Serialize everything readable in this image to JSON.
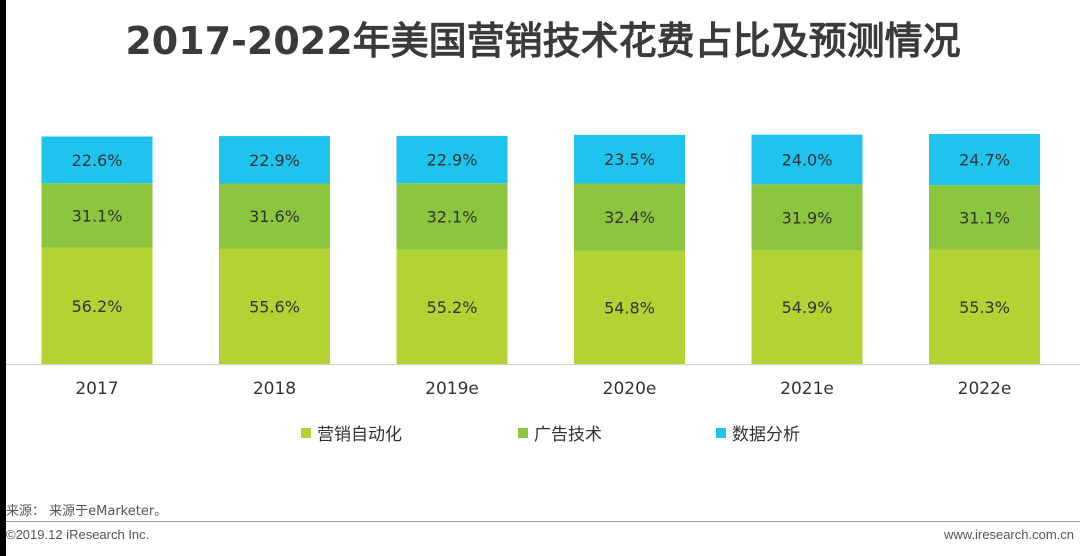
{
  "title": "2017-2022年美国营销技术花费占比及预测情况",
  "chart_data": {
    "type": "bar",
    "stacked": true,
    "normalized": true,
    "categories": [
      "2017",
      "2018",
      "2019e",
      "2020e",
      "2021e",
      "2022e"
    ],
    "series": [
      {
        "name": "营销自动化",
        "color": "#b3d334",
        "values": [
          56.2,
          55.6,
          55.2,
          54.8,
          54.9,
          55.3
        ]
      },
      {
        "name": "广告技术",
        "color": "#8cc63f",
        "values": [
          31.1,
          31.6,
          32.1,
          32.4,
          31.9,
          31.1
        ]
      },
      {
        "name": "数据分析",
        "color": "#1fc4ee",
        "values": [
          22.6,
          22.9,
          22.9,
          23.5,
          24.0,
          24.7
        ]
      }
    ],
    "value_suffix": "%",
    "legend_position": "bottom"
  },
  "footer": {
    "source": "来源： 来源于eMarketer。",
    "copyright": "©2019.12 iResearch Inc.",
    "website": "www.iresearch.com.cn"
  }
}
